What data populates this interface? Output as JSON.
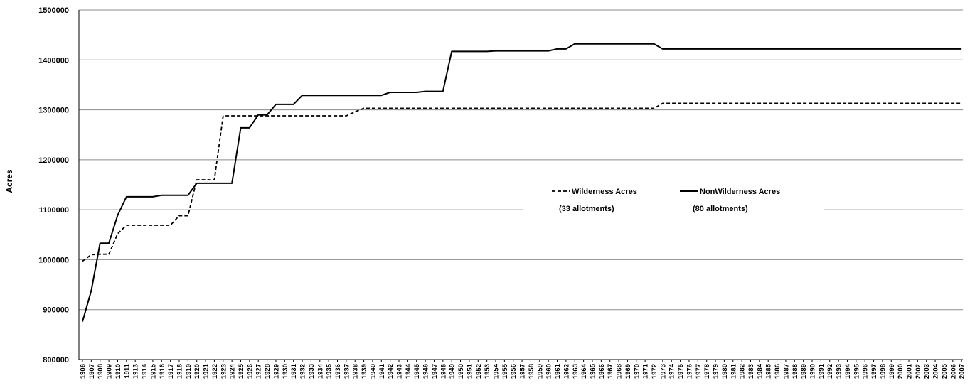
{
  "chart_data": {
    "type": "line",
    "title": "",
    "xlabel": "",
    "ylabel": "Acres",
    "ylim": [
      800000,
      1500000
    ],
    "yticks": [
      800000,
      900000,
      1000000,
      1100000,
      1200000,
      1300000,
      1400000,
      1500000
    ],
    "grid": true,
    "legend_position": "center-right",
    "x": [
      "1906",
      "1907",
      "1908",
      "1909",
      "1910",
      "1911",
      "1913",
      "1914",
      "1915",
      "1916",
      "1917",
      "1918",
      "1919",
      "1920",
      "1921",
      "1922",
      "1923",
      "1924",
      "1925",
      "1926",
      "1927",
      "1928",
      "1929",
      "1930",
      "1931",
      "1932",
      "1933",
      "1934",
      "1935",
      "1936",
      "1937",
      "1938",
      "1939",
      "1940",
      "1941",
      "1942",
      "1943",
      "1944",
      "1945",
      "1946",
      "1947",
      "1948",
      "1949",
      "1950",
      "1951",
      "1952",
      "1953",
      "1954",
      "1955",
      "1956",
      "1957",
      "1958",
      "1959",
      "1960",
      "1961",
      "1962",
      "1963",
      "1964",
      "1965",
      "1966",
      "1967",
      "1968",
      "1969",
      "1970",
      "1971",
      "1972",
      "1973",
      "1974",
      "1975",
      "1976",
      "1977",
      "1978",
      "1979",
      "1980",
      "1981",
      "1982",
      "1983",
      "1984",
      "1985",
      "1986",
      "1987",
      "1988",
      "1989",
      "1990",
      "1991",
      "1992",
      "1993",
      "1994",
      "1995",
      "1996",
      "1997",
      "1998",
      "1999",
      "2000",
      "2001",
      "2002",
      "2003",
      "2004",
      "2005",
      "2006",
      "2007"
    ],
    "series": [
      {
        "name": "Wilderness Acres",
        "note": "(33 allotments)",
        "style": "dashed",
        "values": [
          997000,
          1010000,
          1011000,
          1011000,
          1052000,
          1069000,
          1069000,
          1069000,
          1069000,
          1069000,
          1069000,
          1088000,
          1088000,
          1160000,
          1160000,
          1160000,
          1288000,
          1288000,
          1288000,
          1288000,
          1288000,
          1288000,
          1288000,
          1288000,
          1288000,
          1288000,
          1288000,
          1288000,
          1288000,
          1288000,
          1288000,
          1296000,
          1303000,
          1303000,
          1303000,
          1303000,
          1303000,
          1303000,
          1303000,
          1303000,
          1303000,
          1303000,
          1303000,
          1303000,
          1303000,
          1303000,
          1303000,
          1303000,
          1303000,
          1303000,
          1303000,
          1303000,
          1303000,
          1303000,
          1303000,
          1303000,
          1303000,
          1303000,
          1303000,
          1303000,
          1303000,
          1303000,
          1303000,
          1303000,
          1303000,
          1303000,
          1313000,
          1313000,
          1313000,
          1313000,
          1313000,
          1313000,
          1313000,
          1313000,
          1313000,
          1313000,
          1313000,
          1313000,
          1313000,
          1313000,
          1313000,
          1313000,
          1313000,
          1313000,
          1313000,
          1313000,
          1313000,
          1313000,
          1313000,
          1313000,
          1313000,
          1313000,
          1313000,
          1313000,
          1313000,
          1313000,
          1313000,
          1313000,
          1313000,
          1313000,
          1313000
        ]
      },
      {
        "name": "NonWilderness Acres",
        "note": "(80 allotments)",
        "style": "solid",
        "values": [
          876000,
          938000,
          1033000,
          1033000,
          1089000,
          1126000,
          1126000,
          1126000,
          1126000,
          1129000,
          1129000,
          1129000,
          1129000,
          1153000,
          1153000,
          1153000,
          1153000,
          1153000,
          1264000,
          1264000,
          1290000,
          1290000,
          1311000,
          1311000,
          1311000,
          1329000,
          1329000,
          1329000,
          1329000,
          1329000,
          1329000,
          1329000,
          1329000,
          1329000,
          1329000,
          1335000,
          1335000,
          1335000,
          1335000,
          1337000,
          1337000,
          1337000,
          1417000,
          1417000,
          1417000,
          1417000,
          1417000,
          1418000,
          1418000,
          1418000,
          1418000,
          1418000,
          1418000,
          1418000,
          1422000,
          1422000,
          1432000,
          1432000,
          1432000,
          1432000,
          1432000,
          1432000,
          1432000,
          1432000,
          1432000,
          1432000,
          1422000,
          1422000,
          1422000,
          1422000,
          1422000,
          1422000,
          1422000,
          1422000,
          1422000,
          1422000,
          1422000,
          1422000,
          1422000,
          1422000,
          1422000,
          1422000,
          1422000,
          1422000,
          1422000,
          1422000,
          1422000,
          1422000,
          1422000,
          1422000,
          1422000,
          1422000,
          1422000,
          1422000,
          1422000,
          1422000,
          1422000,
          1422000,
          1422000,
          1422000,
          1422000
        ]
      }
    ]
  }
}
